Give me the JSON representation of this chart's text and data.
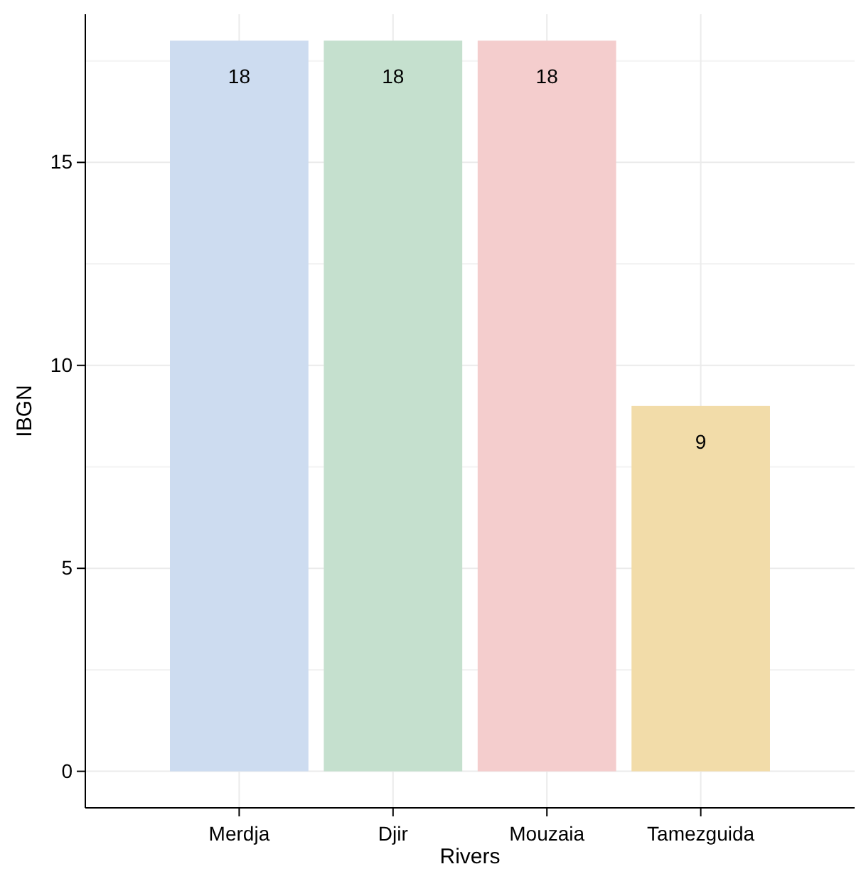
{
  "chart_data": {
    "type": "bar",
    "xlabel": "Rivers",
    "ylabel": "IBGN",
    "categories": [
      "Merdja",
      "Djir",
      "Mouzaia",
      "Tamezguida"
    ],
    "values": [
      18,
      18,
      18,
      9
    ],
    "colors": [
      "#cddcf0",
      "#c5e0ce",
      "#f4cdcd",
      "#f2dca9"
    ],
    "ylim": [
      -0.9,
      18.65
    ],
    "yticks": [
      0,
      5,
      10,
      15
    ],
    "grid": true,
    "data_labels": true
  }
}
